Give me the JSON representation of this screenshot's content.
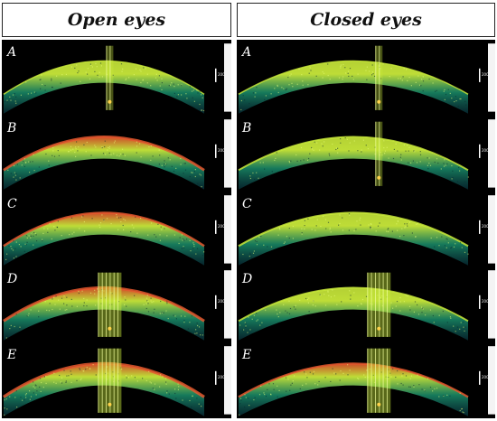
{
  "headers": {
    "left": "Open eyes",
    "right": "Closed eyes"
  },
  "columns": [
    {
      "id": "open",
      "panels": [
        {
          "label": "A",
          "scale": "200µm",
          "artifact": "narrow",
          "warm": 0.0
        },
        {
          "label": "B",
          "scale": "200µm",
          "artifact": "none",
          "warm": 0.7
        },
        {
          "label": "C",
          "scale": "200µm",
          "artifact": "none",
          "warm": 0.5
        },
        {
          "label": "D",
          "scale": "200µm",
          "artifact": "wide",
          "warm": 0.8
        },
        {
          "label": "E",
          "scale": "200µm",
          "artifact": "wide",
          "warm": 0.9
        }
      ]
    },
    {
      "id": "closed",
      "panels": [
        {
          "label": "A",
          "scale": "200µm",
          "artifact": "narrow",
          "warm": 0.0
        },
        {
          "label": "B",
          "scale": "200µm",
          "artifact": "narrow",
          "warm": 0.2
        },
        {
          "label": "C",
          "scale": "200µm",
          "artifact": "none",
          "warm": 0.3
        },
        {
          "label": "D",
          "scale": "200µm",
          "artifact": "wide",
          "warm": 0.2
        },
        {
          "label": "E",
          "scale": "200µm",
          "artifact": "wide",
          "warm": 0.4
        }
      ]
    }
  ],
  "colors": {
    "cool": "#1a8f6b",
    "mid": "#c8e83a",
    "warm": "#e4572e",
    "background": "#000000"
  }
}
